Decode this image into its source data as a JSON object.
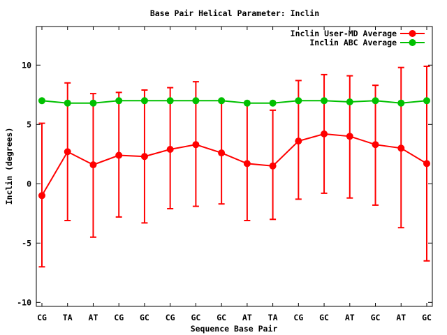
{
  "chart_data": {
    "type": "line",
    "title": "Base Pair Helical Parameter: Inclin",
    "xlabel": "Sequence Base Pair",
    "ylabel": "Inclin (degrees)",
    "categories": [
      "CG",
      "TA",
      "AT",
      "CG",
      "GC",
      "CG",
      "GC",
      "GC",
      "AT",
      "TA",
      "CG",
      "GC",
      "AT",
      "GC",
      "AT",
      "GC"
    ],
    "yticks": [
      -10,
      -5,
      0,
      5,
      10
    ],
    "ylim": [
      -10.3,
      13.3
    ],
    "grid": false,
    "legend_position": "top-right-inside",
    "series": [
      {
        "name": "Inclin User-MD Average",
        "color": "#ff0000",
        "marker": "filled-circle",
        "values": [
          -1.0,
          2.7,
          1.6,
          2.4,
          2.3,
          2.9,
          3.3,
          2.6,
          1.7,
          1.5,
          3.6,
          4.2,
          4.0,
          3.3,
          3.0,
          1.7
        ],
        "error_high": [
          5.1,
          8.5,
          7.6,
          7.7,
          7.9,
          8.1,
          8.6,
          6.9,
          6.8,
          6.2,
          8.7,
          9.2,
          9.1,
          8.3,
          9.8,
          9.9
        ],
        "error_low": [
          -7.0,
          -3.1,
          -4.5,
          -2.8,
          -3.3,
          -2.1,
          -1.9,
          -1.7,
          -3.1,
          -3.0,
          -1.3,
          -0.8,
          -1.2,
          -1.8,
          -3.7,
          -6.5
        ]
      },
      {
        "name": "Inclin ABC Average",
        "color": "#00c000",
        "marker": "filled-circle",
        "values": [
          7.0,
          6.8,
          6.8,
          7.0,
          7.0,
          7.0,
          7.0,
          7.0,
          6.8,
          6.8,
          7.0,
          7.0,
          6.9,
          7.0,
          6.8,
          7.0
        ]
      }
    ]
  }
}
